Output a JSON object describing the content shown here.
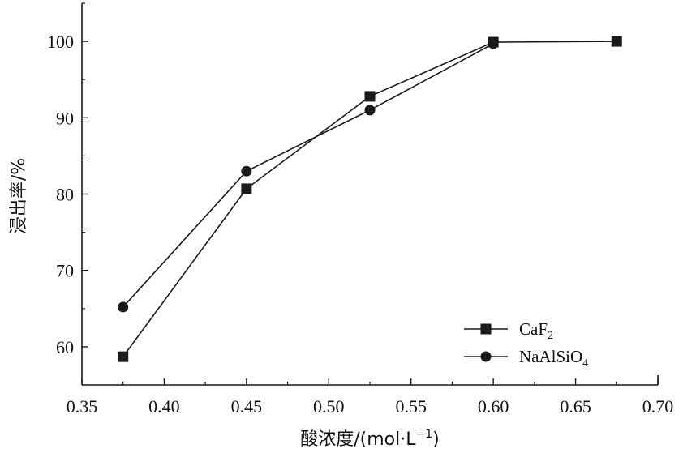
{
  "chart_data": {
    "type": "line",
    "xlabel": "酸浓度/(mol·L⁻¹)",
    "ylabel": "浸出率/%",
    "xlim": [
      0.35,
      0.7
    ],
    "ylim": [
      55,
      105
    ],
    "xticks": [
      0.35,
      0.4,
      0.45,
      0.5,
      0.55,
      0.6,
      0.65,
      0.7
    ],
    "yticks": [
      60,
      70,
      80,
      90,
      100
    ],
    "xtick_labels": [
      "0.35",
      "0.40",
      "0.45",
      "0.50",
      "0.55",
      "0.60",
      "0.65",
      "0.70"
    ],
    "ytick_labels": [
      "60",
      "70",
      "80",
      "90",
      "100"
    ],
    "legend_position": "bottom-right",
    "grid": false,
    "series": [
      {
        "name": "CaF2",
        "marker": "square",
        "x": [
          0.375,
          0.45,
          0.525,
          0.6,
          0.675
        ],
        "y": [
          58.7,
          80.7,
          92.8,
          99.9,
          100.0
        ]
      },
      {
        "name": "NaAlSiO4",
        "marker": "circle",
        "x": [
          0.375,
          0.45,
          0.525,
          0.6
        ],
        "y": [
          65.2,
          83.0,
          91.0,
          99.7
        ]
      }
    ]
  },
  "colors": {
    "line": "#1a1a1a",
    "axis": "#1a1a1a"
  }
}
